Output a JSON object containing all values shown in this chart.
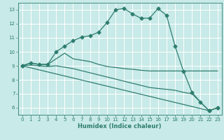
{
  "xlabel": "Humidex (Indice chaleur)",
  "background_color": "#c8eae8",
  "grid_color": "#ffffff",
  "line_color": "#2e7d6e",
  "xlim": [
    -0.5,
    23.5
  ],
  "ylim": [
    5.5,
    13.5
  ],
  "xticks": [
    0,
    1,
    2,
    3,
    4,
    5,
    6,
    7,
    8,
    9,
    10,
    11,
    12,
    13,
    14,
    15,
    16,
    17,
    18,
    19,
    20,
    21,
    22,
    23
  ],
  "yticks": [
    6,
    7,
    8,
    9,
    10,
    11,
    12,
    13
  ],
  "lines": [
    {
      "x": [
        0,
        1,
        2,
        3,
        4,
        5,
        6,
        7,
        8,
        9,
        10,
        11,
        12,
        13,
        14,
        15,
        16,
        17,
        18,
        19,
        20,
        21,
        22,
        23
      ],
      "y": [
        9.0,
        9.2,
        9.1,
        9.1,
        10.0,
        10.4,
        10.8,
        11.05,
        11.15,
        11.4,
        12.1,
        13.0,
        13.1,
        12.7,
        12.4,
        12.4,
        13.1,
        12.6,
        10.4,
        8.6,
        7.1,
        6.4,
        5.8,
        6.0
      ],
      "marker": true
    },
    {
      "x": [
        0,
        1,
        2,
        3,
        4,
        5,
        6,
        7,
        8,
        9,
        10,
        11,
        12,
        13,
        14,
        15,
        16,
        17,
        18,
        19,
        20,
        21,
        22,
        23
      ],
      "y": [
        9.0,
        9.2,
        9.1,
        9.1,
        9.5,
        9.9,
        9.5,
        9.4,
        9.3,
        9.1,
        8.95,
        8.88,
        8.8,
        8.75,
        8.68,
        8.63,
        8.63,
        8.63,
        8.63,
        8.63,
        8.63,
        8.63,
        8.63,
        8.63
      ],
      "marker": false
    },
    {
      "x": [
        0,
        1,
        2,
        3,
        4,
        5,
        6,
        7,
        8,
        9,
        10,
        11,
        12,
        13,
        14,
        15,
        16,
        17,
        18,
        19,
        20,
        21,
        22,
        23
      ],
      "y": [
        9.0,
        9.05,
        9.0,
        8.95,
        9.0,
        8.9,
        8.8,
        8.65,
        8.5,
        8.35,
        8.2,
        8.05,
        7.9,
        7.75,
        7.6,
        7.45,
        7.38,
        7.32,
        7.25,
        7.1,
        7.0,
        6.4,
        5.8,
        6.0
      ],
      "marker": false
    },
    {
      "x": [
        0,
        22,
        23
      ],
      "y": [
        9.0,
        5.8,
        6.0
      ],
      "marker": true
    }
  ]
}
